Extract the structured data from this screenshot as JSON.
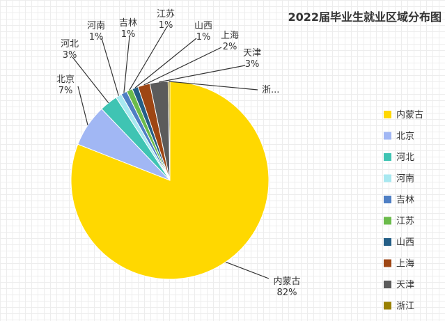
{
  "chart_data": {
    "type": "pie",
    "title": "2022届毕业生就业区域分布图",
    "categories": [
      "内蒙古",
      "北京",
      "河北",
      "河南",
      "吉林",
      "江苏",
      "山西",
      "上海",
      "天津",
      "浙江"
    ],
    "values": [
      82,
      7,
      3,
      1,
      1,
      1,
      1,
      2,
      3,
      0.3
    ],
    "data_labels": [
      "内蒙古\n82%",
      "北京\n7%",
      "河北\n3%",
      "河南\n1%",
      "吉林\n1%",
      "江苏\n1%",
      "山西\n1%",
      "上海\n2%",
      "天津\n3%",
      "浙..."
    ],
    "legend_position": "right",
    "colors": [
      "#ffd800",
      "#a1b7f4",
      "#3fc4b3",
      "#a8e8f0",
      "#4f7fc4",
      "#6bbb4b",
      "#245e86",
      "#9e4614",
      "#5b5b5b",
      "#998000"
    ]
  }
}
